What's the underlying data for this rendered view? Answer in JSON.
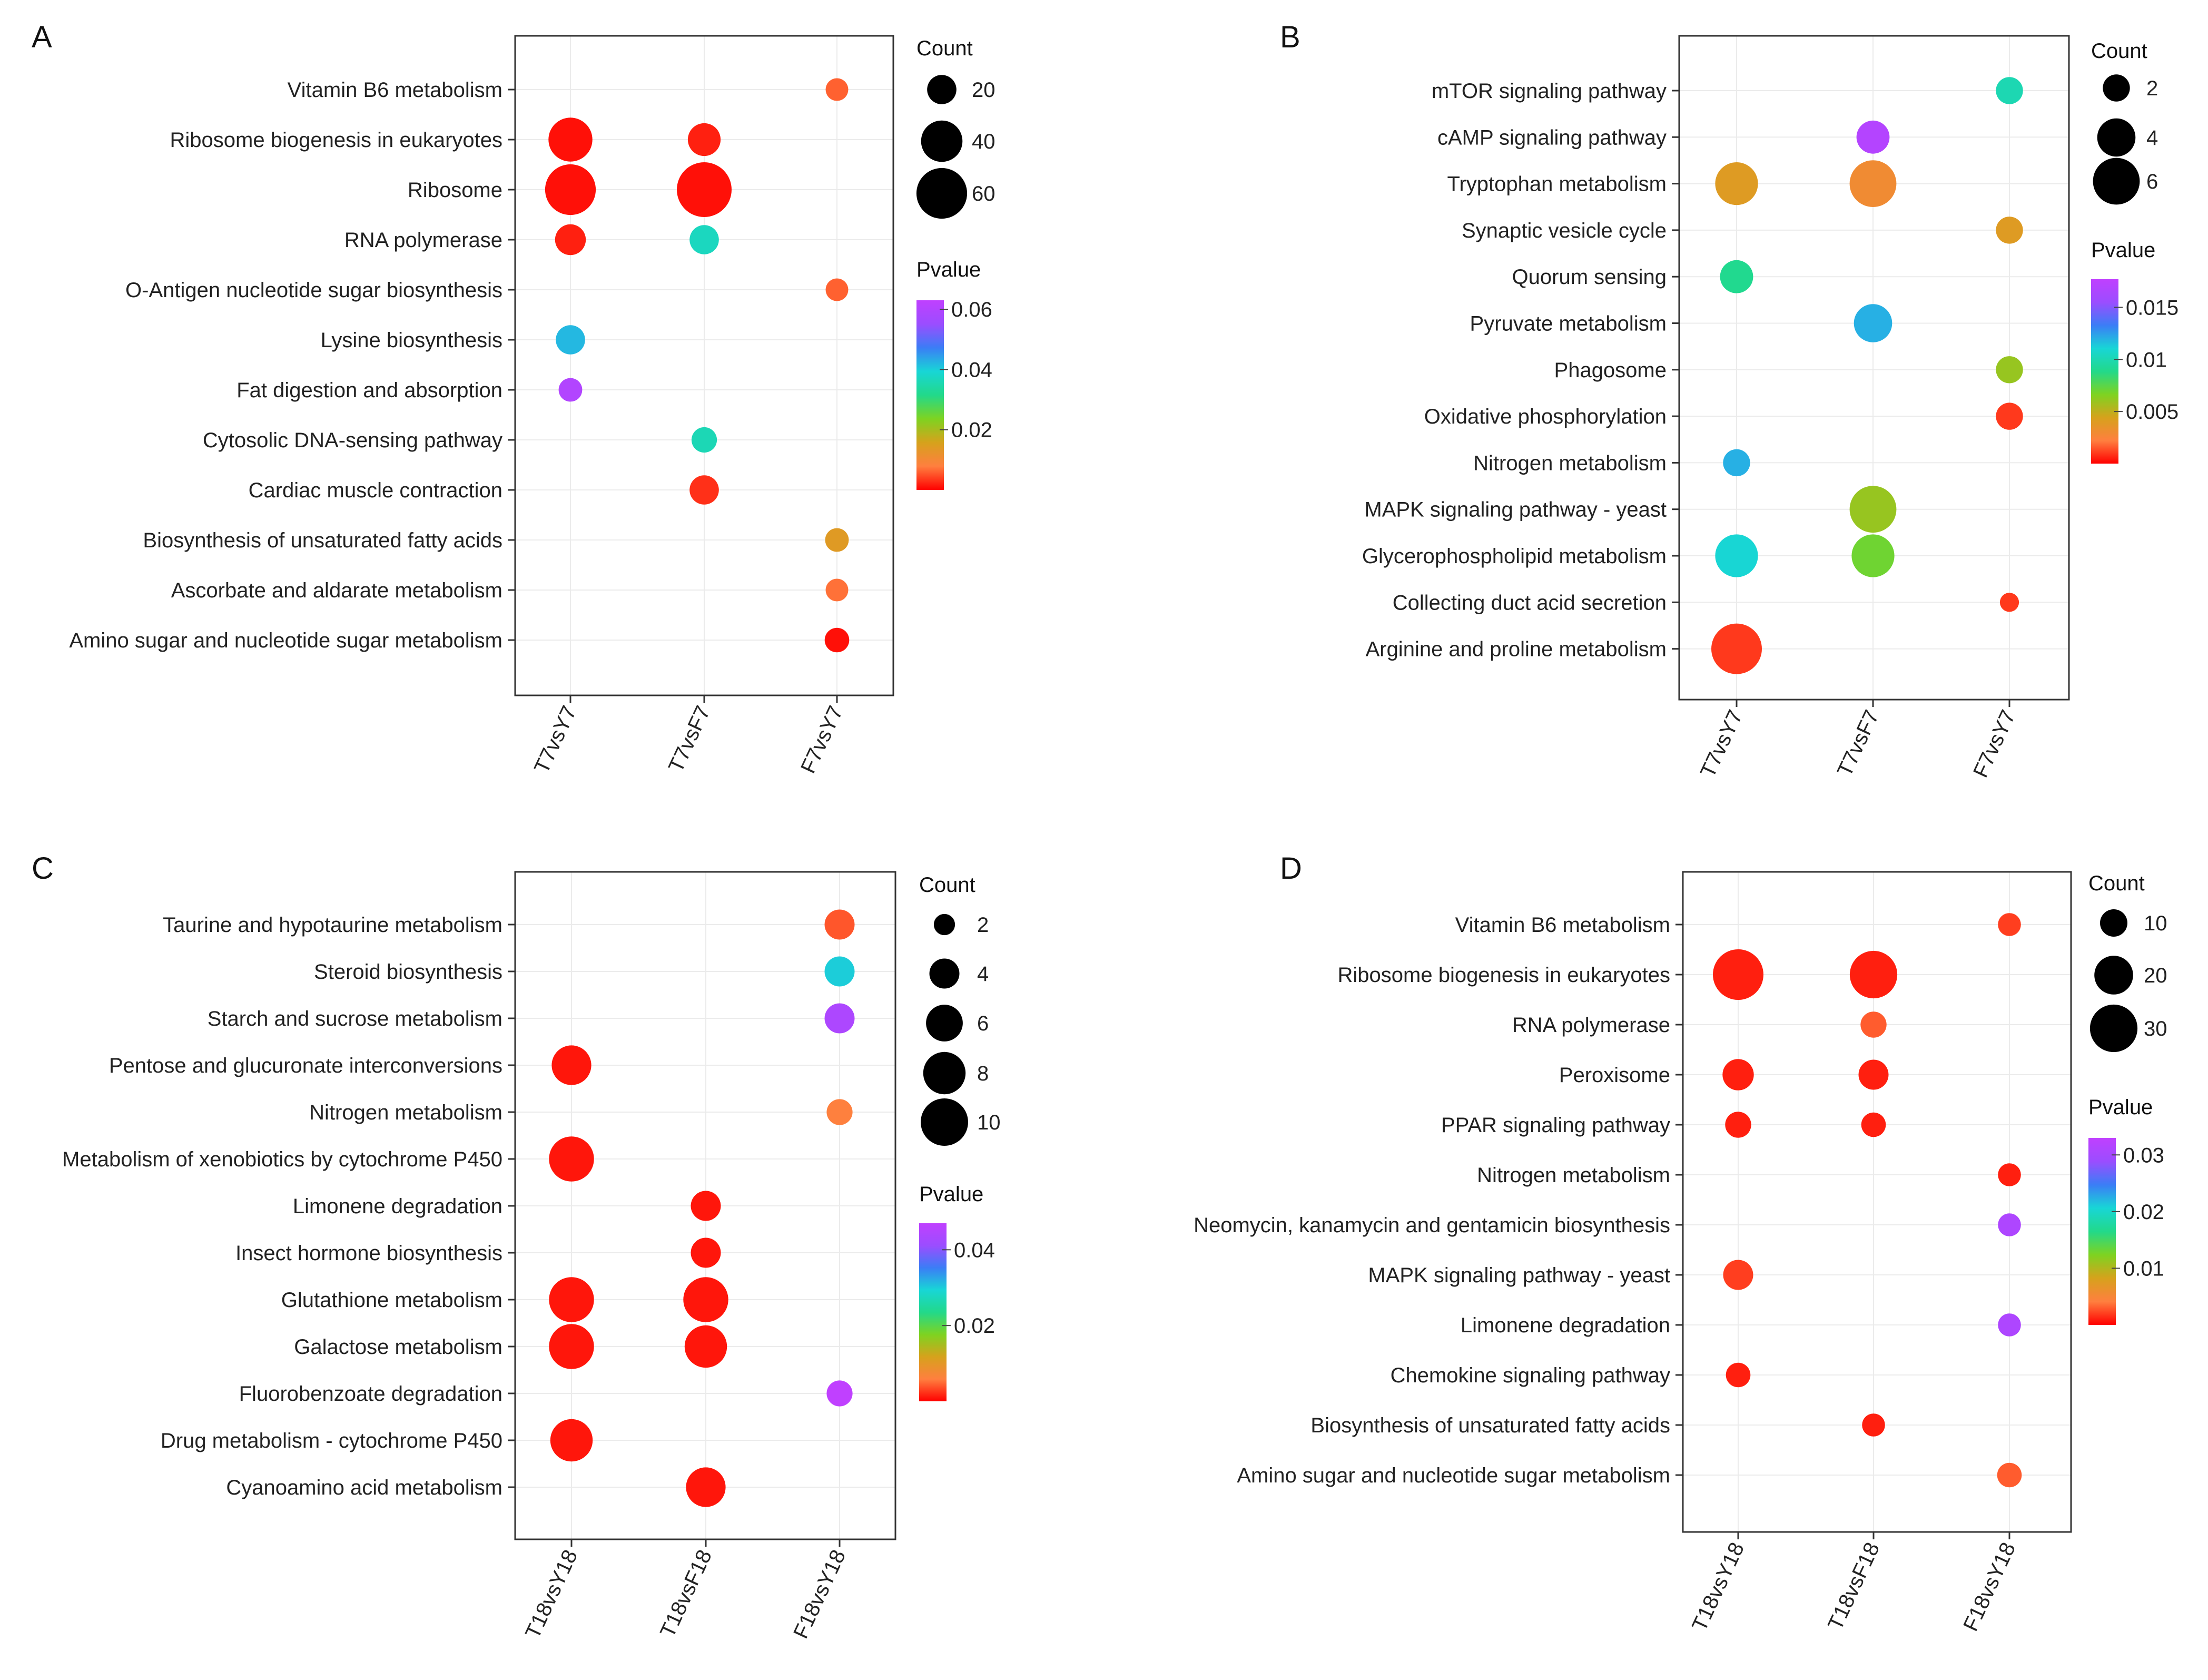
{
  "chart_data": [
    {
      "panel": "A",
      "type": "scatter",
      "subtype": "bubble",
      "xlabel": "",
      "ylabel": "",
      "x_categories": [
        "T7vsY7",
        "T7vsF7",
        "F7vsY7"
      ],
      "y_categories": [
        "Vitamin B6 metabolism",
        "Ribosome biogenesis in eukaryotes",
        "Ribosome",
        "RNA polymerase",
        "O-Antigen nucleotide sugar biosynthesis",
        "Lysine biosynthesis",
        "Fat digestion and absorption",
        "Cytosolic DNA-sensing pathway",
        "Cardiac muscle contraction",
        "Biosynthesis of unsaturated fatty acids",
        "Ascorbate and aldarate metabolism",
        "Amino sugar and nucleotide sugar metabolism"
      ],
      "points": [
        {
          "x": "F7vsY7",
          "y": "Vitamin B6 metabolism",
          "count": 12,
          "pvalue": 0.006
        },
        {
          "x": "T7vsY7",
          "y": "Ribosome biogenesis in eukaryotes",
          "count": 45,
          "pvalue": 0.001
        },
        {
          "x": "T7vsF7",
          "y": "Ribosome biogenesis in eukaryotes",
          "count": 25,
          "pvalue": 0.002
        },
        {
          "x": "T7vsY7",
          "y": "Ribosome",
          "count": 60,
          "pvalue": 0.001
        },
        {
          "x": "T7vsF7",
          "y": "Ribosome",
          "count": 70,
          "pvalue": 0.001
        },
        {
          "x": "T7vsY7",
          "y": "RNA polymerase",
          "count": 22,
          "pvalue": 0.002
        },
        {
          "x": "T7vsF7",
          "y": "RNA polymerase",
          "count": 20,
          "pvalue": 0.037
        },
        {
          "x": "F7vsY7",
          "y": "O-Antigen nucleotide sugar biosynthesis",
          "count": 12,
          "pvalue": 0.006
        },
        {
          "x": "T7vsY7",
          "y": "Lysine biosynthesis",
          "count": 20,
          "pvalue": 0.042
        },
        {
          "x": "T7vsY7",
          "y": "Fat digestion and absorption",
          "count": 13,
          "pvalue": 0.06
        },
        {
          "x": "T7vsF7",
          "y": "Cytosolic DNA-sensing pathway",
          "count": 15,
          "pvalue": 0.036
        },
        {
          "x": "T7vsF7",
          "y": "Cardiac muscle contraction",
          "count": 20,
          "pvalue": 0.003
        },
        {
          "x": "F7vsY7",
          "y": "Biosynthesis of unsaturated fatty acids",
          "count": 13,
          "pvalue": 0.014
        },
        {
          "x": "F7vsY7",
          "y": "Ascorbate and aldarate metabolism",
          "count": 12,
          "pvalue": 0.007
        },
        {
          "x": "F7vsY7",
          "y": "Amino sugar and nucleotide sugar metabolism",
          "count": 14,
          "pvalue": 0.001
        }
      ],
      "size_legend": {
        "title": "Count",
        "values": [
          20,
          40,
          60
        ],
        "labels": [
          "20",
          "40",
          "60"
        ],
        "max": 70
      },
      "color_legend": {
        "title": "Pvalue",
        "min": 0,
        "max": 0.063,
        "ticks": [
          0.06,
          0.04,
          0.02
        ],
        "tick_labels": [
          "0.06",
          "0.04",
          "0.02"
        ]
      }
    },
    {
      "panel": "B",
      "type": "scatter",
      "subtype": "bubble",
      "xlabel": "",
      "ylabel": "",
      "x_categories": [
        "T7vsY7",
        "T7vsF7",
        "F7vsY7"
      ],
      "y_categories": [
        "mTOR signaling pathway",
        "cAMP signaling pathway",
        "Tryptophan metabolism",
        "Synaptic vesicle cycle",
        "Quorum sensing",
        "Pyruvate metabolism",
        "Phagosome",
        "Oxidative phosphorylation",
        "Nitrogen metabolism",
        "MAPK signaling pathway - yeast",
        "Glycerophospholipid metabolism",
        "Collecting duct acid secretion",
        "Arginine and proline metabolism"
      ],
      "points": [
        {
          "x": "F7vsY7",
          "y": "mTOR signaling pathway",
          "count": 2,
          "pvalue": 0.01
        },
        {
          "x": "T7vsF7",
          "y": "cAMP signaling pathway",
          "count": 3,
          "pvalue": 0.017
        },
        {
          "x": "T7vsY7",
          "y": "Tryptophan metabolism",
          "count": 5,
          "pvalue": 0.004
        },
        {
          "x": "T7vsF7",
          "y": "Tryptophan metabolism",
          "count": 6,
          "pvalue": 0.003
        },
        {
          "x": "F7vsY7",
          "y": "Synaptic vesicle cycle",
          "count": 2,
          "pvalue": 0.004
        },
        {
          "x": "T7vsY7",
          "y": "Quorum sensing",
          "count": 3,
          "pvalue": 0.009
        },
        {
          "x": "T7vsF7",
          "y": "Pyruvate metabolism",
          "count": 4,
          "pvalue": 0.012
        },
        {
          "x": "F7vsY7",
          "y": "Phagosome",
          "count": 2,
          "pvalue": 0.006
        },
        {
          "x": "F7vsY7",
          "y": "Oxidative phosphorylation",
          "count": 2,
          "pvalue": 0.001
        },
        {
          "x": "T7vsY7",
          "y": "Nitrogen metabolism",
          "count": 2,
          "pvalue": 0.012
        },
        {
          "x": "T7vsF7",
          "y": "MAPK signaling pathway - yeast",
          "count": 6,
          "pvalue": 0.006
        },
        {
          "x": "T7vsY7",
          "y": "Glycerophospholipid metabolism",
          "count": 5,
          "pvalue": 0.011
        },
        {
          "x": "T7vsF7",
          "y": "Glycerophospholipid metabolism",
          "count": 5,
          "pvalue": 0.007
        },
        {
          "x": "F7vsY7",
          "y": "Collecting duct acid secretion",
          "count": 1,
          "pvalue": 0.001
        },
        {
          "x": "T7vsY7",
          "y": "Arginine and proline metabolism",
          "count": 7,
          "pvalue": 0.001
        }
      ],
      "size_legend": {
        "title": "Count",
        "values": [
          2,
          4,
          6
        ],
        "labels": [
          "2",
          "4",
          "6"
        ],
        "max": 7
      },
      "color_legend": {
        "title": "Pvalue",
        "min": 0,
        "max": 0.0177,
        "ticks": [
          0.015,
          0.01,
          0.005
        ],
        "tick_labels": [
          "0.015",
          "0.01",
          "0.005"
        ]
      }
    },
    {
      "panel": "C",
      "type": "scatter",
      "subtype": "bubble",
      "xlabel": "",
      "ylabel": "",
      "x_categories": [
        "T18vsY18",
        "T18vsF18",
        "F18vsY18"
      ],
      "y_categories": [
        "Taurine and hypotaurine metabolism",
        "Steroid biosynthesis",
        "Starch and sucrose metabolism",
        "Pentose and glucuronate interconversions",
        "Nitrogen metabolism",
        "Metabolism of xenobiotics by cytochrome P450",
        "Limonene degradation",
        "Insect hormone biosynthesis",
        "Glutathione metabolism",
        "Galactose metabolism",
        "Fluorobenzoate degradation",
        "Drug metabolism - cytochrome P450",
        "Cyanoamino acid metabolism"
      ],
      "points": [
        {
          "x": "F18vsY18",
          "y": "Taurine and hypotaurine metabolism",
          "count": 4,
          "pvalue": 0.004
        },
        {
          "x": "F18vsY18",
          "y": "Steroid biosynthesis",
          "count": 4,
          "pvalue": 0.03
        },
        {
          "x": "F18vsY18",
          "y": "Starch and sucrose metabolism",
          "count": 4,
          "pvalue": 0.044
        },
        {
          "x": "T18vsY18",
          "y": "Pentose and glucuronate interconversions",
          "count": 7,
          "pvalue": 0.001
        },
        {
          "x": "F18vsY18",
          "y": "Nitrogen metabolism",
          "count": 3,
          "pvalue": 0.006
        },
        {
          "x": "T18vsY18",
          "y": "Metabolism of xenobiotics by cytochrome P450",
          "count": 9,
          "pvalue": 0.001
        },
        {
          "x": "T18vsF18",
          "y": "Limonene degradation",
          "count": 4,
          "pvalue": 0.001
        },
        {
          "x": "T18vsF18",
          "y": "Insect hormone biosynthesis",
          "count": 4,
          "pvalue": 0.001
        },
        {
          "x": "T18vsY18",
          "y": "Glutathione metabolism",
          "count": 9,
          "pvalue": 0.001
        },
        {
          "x": "T18vsF18",
          "y": "Glutathione metabolism",
          "count": 9,
          "pvalue": 0.001
        },
        {
          "x": "T18vsY18",
          "y": "Galactose metabolism",
          "count": 9,
          "pvalue": 0.001
        },
        {
          "x": "T18vsF18",
          "y": "Galactose metabolism",
          "count": 8,
          "pvalue": 0.001
        },
        {
          "x": "F18vsY18",
          "y": "Fluorobenzoate degradation",
          "count": 3,
          "pvalue": 0.047
        },
        {
          "x": "T18vsY18",
          "y": "Drug metabolism - cytochrome P450",
          "count": 8,
          "pvalue": 0.001
        },
        {
          "x": "T18vsF18",
          "y": "Cyanoamino acid metabolism",
          "count": 7,
          "pvalue": 0.001
        }
      ],
      "size_legend": {
        "title": "Count",
        "values": [
          2,
          4,
          6,
          8,
          10
        ],
        "labels": [
          "2",
          "4",
          "6",
          "8",
          "10"
        ],
        "max": 10
      },
      "color_legend": {
        "title": "Pvalue",
        "min": 0,
        "max": 0.047,
        "ticks": [
          0.04,
          0.02
        ],
        "tick_labels": [
          "0.04",
          "0.02"
        ]
      }
    },
    {
      "panel": "D",
      "type": "scatter",
      "subtype": "bubble",
      "xlabel": "",
      "ylabel": "",
      "x_categories": [
        "T18vsY18",
        "T18vsF18",
        "F18vsY18"
      ],
      "y_categories": [
        "Vitamin B6 metabolism",
        "Ribosome biogenesis in eukaryotes",
        "RNA polymerase",
        "Peroxisome",
        "PPAR signaling pathway",
        "Nitrogen metabolism",
        "Neomycin, kanamycin and gentamicin biosynthesis",
        "MAPK signaling pathway - yeast",
        "Limonene degradation",
        "Chemokine signaling pathway",
        "Biosynthesis of unsaturated fatty acids",
        "Amino sugar and nucleotide sugar metabolism"
      ],
      "points": [
        {
          "x": "F18vsY18",
          "y": "Vitamin B6 metabolism",
          "count": 7,
          "pvalue": 0.002
        },
        {
          "x": "T18vsY18",
          "y": "Ribosome biogenesis in eukaryotes",
          "count": 34,
          "pvalue": 0.001
        },
        {
          "x": "T18vsF18",
          "y": "Ribosome biogenesis in eukaryotes",
          "count": 30,
          "pvalue": 0.001
        },
        {
          "x": "T18vsF18",
          "y": "RNA polymerase",
          "count": 9,
          "pvalue": 0.003
        },
        {
          "x": "T18vsY18",
          "y": "Peroxisome",
          "count": 13,
          "pvalue": 0.001
        },
        {
          "x": "T18vsF18",
          "y": "Peroxisome",
          "count": 12,
          "pvalue": 0.001
        },
        {
          "x": "T18vsY18",
          "y": "PPAR signaling pathway",
          "count": 9,
          "pvalue": 0.001
        },
        {
          "x": "T18vsF18",
          "y": "PPAR signaling pathway",
          "count": 8,
          "pvalue": 0.001
        },
        {
          "x": "F18vsY18",
          "y": "Nitrogen metabolism",
          "count": 7,
          "pvalue": 0.001
        },
        {
          "x": "F18vsY18",
          "y": "Neomycin, kanamycin and gentamicin biosynthesis",
          "count": 7,
          "pvalue": 0.031
        },
        {
          "x": "T18vsY18",
          "y": "MAPK signaling pathway - yeast",
          "count": 12,
          "pvalue": 0.002
        },
        {
          "x": "F18vsY18",
          "y": "Limonene degradation",
          "count": 7,
          "pvalue": 0.031
        },
        {
          "x": "T18vsY18",
          "y": "Chemokine signaling pathway",
          "count": 8,
          "pvalue": 0.001
        },
        {
          "x": "T18vsF18",
          "y": "Biosynthesis of unsaturated fatty acids",
          "count": 7,
          "pvalue": 0.001
        },
        {
          "x": "F18vsY18",
          "y": "Amino sugar and nucleotide sugar metabolism",
          "count": 8,
          "pvalue": 0.003
        }
      ],
      "size_legend": {
        "title": "Count",
        "values": [
          10,
          20,
          30
        ],
        "labels": [
          "10",
          "20",
          "30"
        ],
        "max": 34
      },
      "color_legend": {
        "title": "Pvalue",
        "min": 0,
        "max": 0.033,
        "ticks": [
          0.03,
          0.02,
          0.01
        ],
        "tick_labels": [
          "0.03",
          "0.02",
          "0.01"
        ]
      }
    }
  ],
  "colors": {
    "frame": "#333333",
    "grid": "#ebebeb",
    "text": "#222222",
    "gradient_stops": [
      "#ff0000",
      "#ff7f3f",
      "#d6a21c",
      "#7ed321",
      "#22d98a",
      "#18d6d6",
      "#3b7df6",
      "#9b4dff",
      "#c040ff"
    ],
    "legend_dot": "#000000"
  }
}
